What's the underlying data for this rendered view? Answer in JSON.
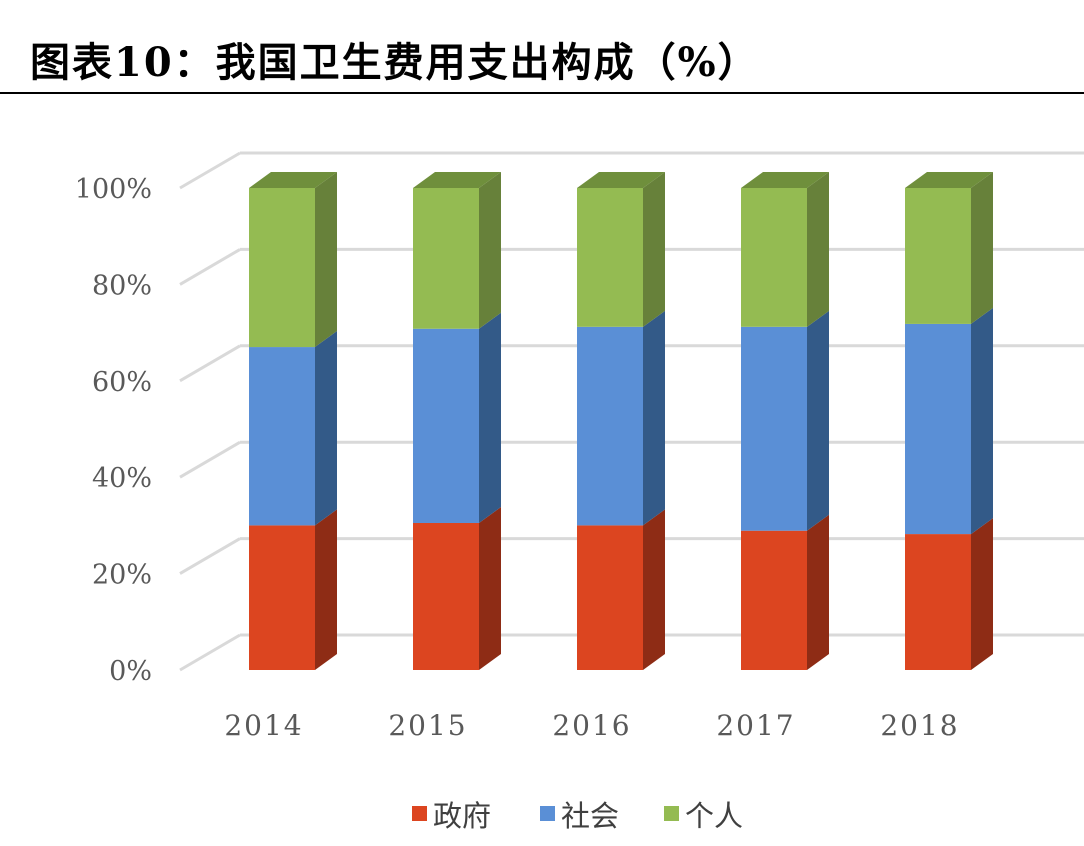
{
  "title": "图表10：我国卫生费用支出构成（%）",
  "chart_data": {
    "type": "bar",
    "stacked": true,
    "percent_stacked": true,
    "three_d": true,
    "categories": [
      "2014",
      "2015",
      "2016",
      "2017",
      "2018"
    ],
    "series": [
      {
        "name": "政府",
        "values": [
          30.0,
          30.5,
          30.0,
          28.9,
          28.2
        ],
        "color": "#dc4520",
        "side_color": "#8e2c15",
        "top_color": "#c03a1b"
      },
      {
        "name": "社会",
        "values": [
          37.0,
          40.3,
          41.2,
          42.3,
          43.6
        ],
        "color": "#5a8fd6",
        "side_color": "#335a88",
        "top_color": "#4a78b8"
      },
      {
        "name": "个人",
        "values": [
          33.0,
          29.2,
          28.8,
          28.8,
          28.2
        ],
        "color": "#94bb52",
        "side_color": "#67813a",
        "top_color": "#6f8f3c"
      }
    ],
    "yticks": [
      "0%",
      "20%",
      "40%",
      "60%",
      "80%",
      "100%"
    ],
    "ylim": [
      0,
      100
    ],
    "grid": true,
    "legend": "bottom",
    "xlabel": "",
    "ylabel": ""
  }
}
